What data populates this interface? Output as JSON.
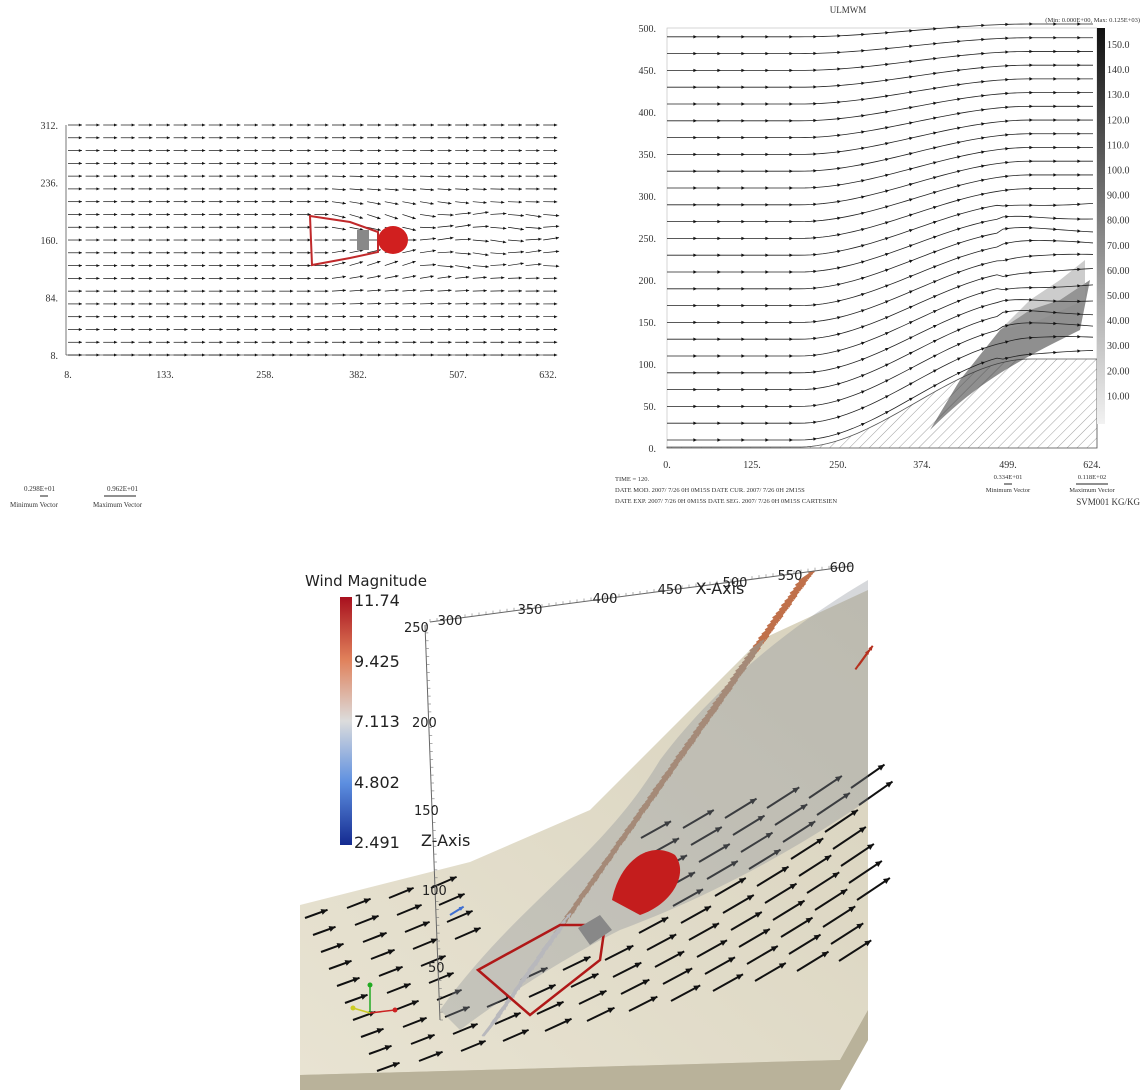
{
  "panel_top_left": {
    "yticks": [
      "312.",
      "236.",
      "160.",
      "84.",
      "8."
    ],
    "xticks": [
      "8.",
      "133.",
      "258.",
      "382.",
      "507.",
      "632."
    ],
    "legend": {
      "min_value": "0.298E+01",
      "min_label": "Minimum Vector",
      "max_value": "0.962E+01",
      "max_label": "Maximum Vector"
    }
  },
  "panel_top_right": {
    "title": "ULMWM",
    "range": "(Min: 0.000E+00, Max: 0.125E+03)",
    "yticks": [
      "500.",
      "450.",
      "400.",
      "350.",
      "300.",
      "250.",
      "200.",
      "150.",
      "100.",
      "50.",
      "0."
    ],
    "xticks": [
      "0.",
      "125.",
      "250.",
      "374.",
      "499.",
      "624."
    ],
    "colorbar": [
      "150.0",
      "140.0",
      "130.0",
      "120.0",
      "110.0",
      "100.0",
      "90.00",
      "80.00",
      "70.00",
      "60.00",
      "50.00",
      "40.00",
      "30.00",
      "20.00",
      "10.00"
    ],
    "footer": [
      "TIME =      120.",
      "DATE MOD. 2007/ 7/26    0H 0M15S    DATE CUR. 2007/ 7/26    0H 2M15S",
      "DATE EXP. 2007/ 7/26    0H 0M15S    DATE SEG. 2007/ 7/26    0H 0M15S    CARTESIEN"
    ],
    "legend": {
      "min_value": "0.334E+01",
      "min_label": "Minimum Vector",
      "max_value": "0.118E+02",
      "max_label": "Maximum Vector"
    },
    "units": "SVM001 KG/KG"
  },
  "panel_bottom": {
    "colorbar_title": "Wind Magnitude",
    "colorbar_ticks": [
      "11.74",
      "9.425",
      "7.113",
      "4.802",
      "2.491"
    ],
    "x_axis_label": "X-Axis",
    "x_ticks": [
      "300",
      "350",
      "400",
      "450",
      "500",
      "550",
      "600"
    ],
    "z_axis_label": "Z-Axis",
    "z_ticks": [
      "250",
      "200",
      "150",
      "100",
      "50"
    ]
  }
}
